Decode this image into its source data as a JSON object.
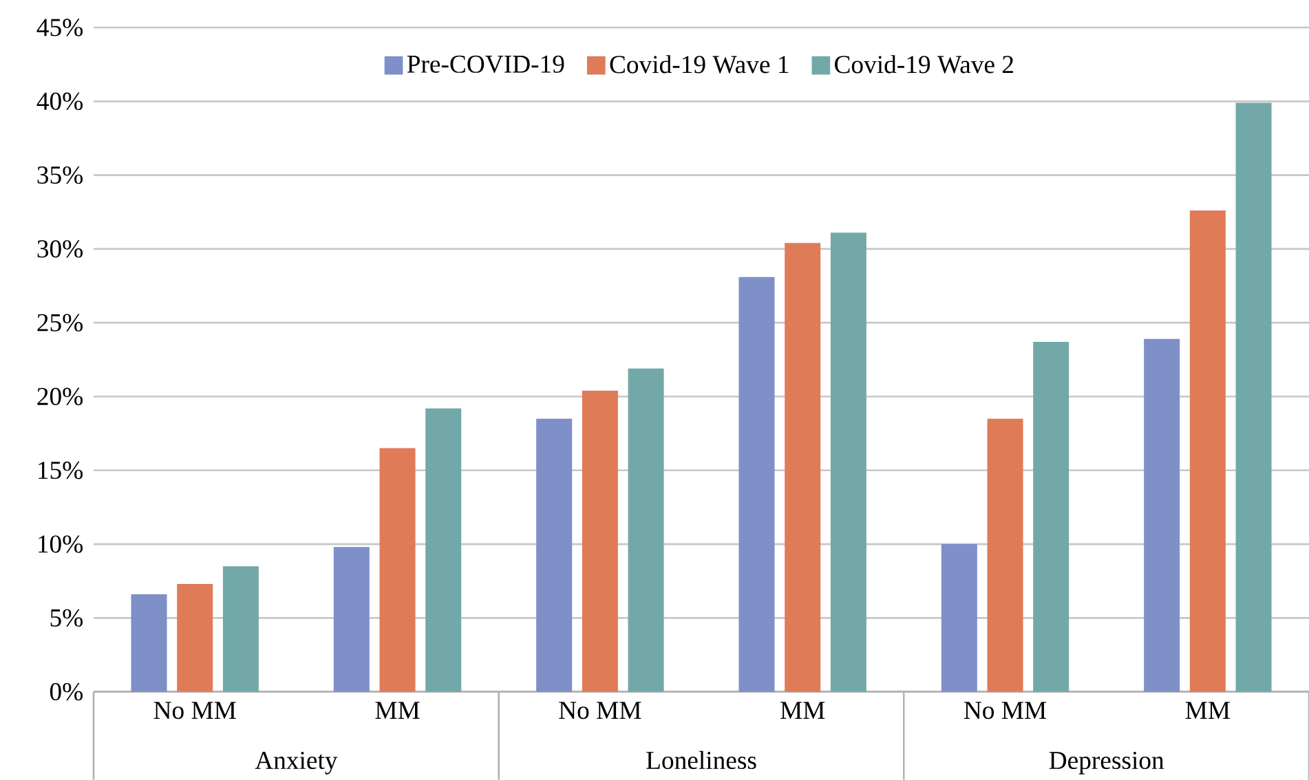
{
  "chart_data": {
    "type": "bar",
    "categories": [
      "No MM",
      "MM",
      "No MM",
      "MM",
      "No MM",
      "MM"
    ],
    "annotations": [
      "Anxiety",
      "Loneliness",
      "Depression"
    ],
    "series": [
      {
        "name": "Pre-COVID-19",
        "color": "#7f8fc8",
        "values": [
          6.6,
          9.8,
          18.5,
          28.1,
          10.0,
          23.9
        ]
      },
      {
        "name": "Covid-19 Wave 1",
        "color": "#e07b58",
        "values": [
          7.3,
          16.5,
          20.4,
          30.4,
          18.5,
          32.6
        ]
      },
      {
        "name": "Covid-19 Wave 2",
        "color": "#72a9a8",
        "values": [
          8.5,
          19.2,
          21.9,
          31.1,
          23.7,
          39.9
        ]
      }
    ],
    "ylim": [
      0,
      45
    ],
    "yticks": [
      {
        "value": 0,
        "label": "0%"
      },
      {
        "value": 5,
        "label": "5%"
      },
      {
        "value": 10,
        "label": "10%"
      },
      {
        "value": 15,
        "label": "15%"
      },
      {
        "value": 20,
        "label": "20%"
      },
      {
        "value": 25,
        "label": "25%"
      },
      {
        "value": 30,
        "label": "30%"
      },
      {
        "value": 35,
        "label": "35%"
      },
      {
        "value": 40,
        "label": "40%"
      },
      {
        "value": 45,
        "label": "45%"
      }
    ],
    "grid": "y",
    "legend": "top"
  }
}
